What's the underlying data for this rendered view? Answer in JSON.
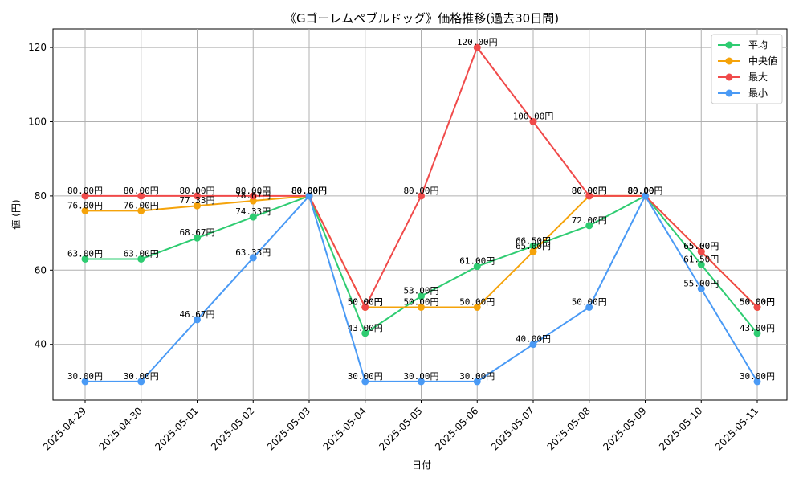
{
  "chart_data": {
    "type": "line",
    "title": "《Gゴーレムペブルドッグ》価格推移(過去30日間)",
    "xlabel": "日付",
    "ylabel": "値 (円)",
    "ylim": [
      25,
      125
    ],
    "yticks": [
      40,
      60,
      80,
      100,
      120
    ],
    "grid": true,
    "legend_position": "top-right",
    "label_suffix": "円",
    "categories": [
      "2025-04-29",
      "2025-04-30",
      "2025-05-01",
      "2025-05-02",
      "2025-05-03",
      "2025-05-04",
      "2025-05-05",
      "2025-05-06",
      "2025-05-07",
      "2025-05-08",
      "2025-05-09",
      "2025-05-10",
      "2025-05-11"
    ],
    "series": [
      {
        "name": "平均",
        "color": "#2ecc71",
        "values": [
          63.0,
          63.0,
          68.67,
          74.33,
          80.0,
          43.0,
          53.0,
          61.0,
          66.5,
          72.0,
          80.0,
          61.5,
          43.0
        ]
      },
      {
        "name": "中央値",
        "color": "#f5a30a",
        "values": [
          76.0,
          76.0,
          77.33,
          78.67,
          80.0,
          50.0,
          50.0,
          50.0,
          65.0,
          80.0,
          80.0,
          65.0,
          50.0
        ]
      },
      {
        "name": "最大",
        "color": "#f04a4a",
        "values": [
          80.0,
          80.0,
          80.0,
          80.0,
          80.0,
          50.0,
          80.0,
          120.0,
          100.0,
          80.0,
          80.0,
          65.0,
          50.0
        ]
      },
      {
        "name": "最小",
        "color": "#4a9af5",
        "values": [
          30.0,
          30.0,
          46.67,
          63.33,
          80.0,
          30.0,
          30.0,
          30.0,
          40.0,
          50.0,
          80.0,
          55.0,
          30.0
        ]
      }
    ]
  }
}
